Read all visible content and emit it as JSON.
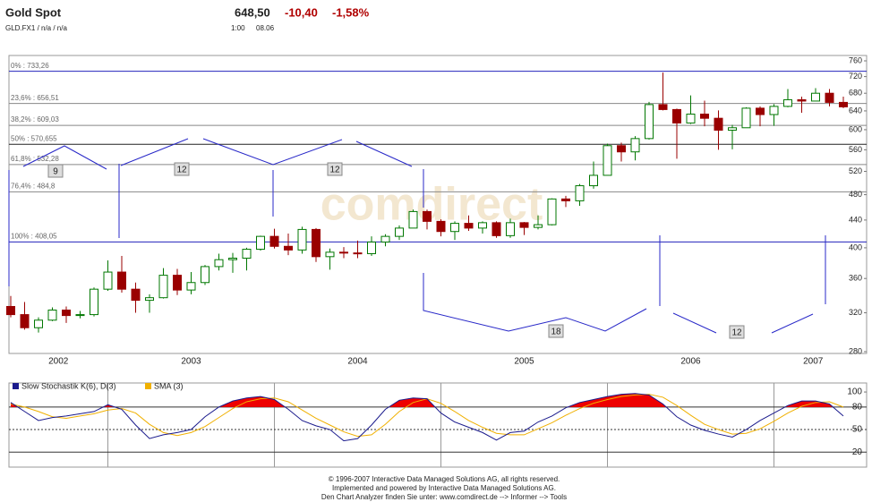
{
  "header": {
    "title": "Gold Spot",
    "symbol": "GLD.FX1 / n/a / n/a",
    "price": "648,50",
    "change": "-10,40",
    "change_pct": "-1,58%",
    "time": "1:00",
    "date": "08.06"
  },
  "footer": [
    "© 1996-2007 Interactive Data Managed Solutions AG, all rights reserved.",
    "Implemented and powered by Interactive Data Managed Solutions AG.",
    "Den Chart Analyzer finden Sie unter: www.comdirect.de --> Informer --> Tools"
  ],
  "chart_data": [
    {
      "type": "candlestick",
      "watermark": "comdirect",
      "log_scale": true,
      "up_color": "#ffffff",
      "up_border": "#007700",
      "down_color": "#9a0000",
      "categories": [
        null,
        null,
        null,
        null,
        null,
        null,
        null,
        null,
        null,
        null,
        null,
        null,
        null,
        null,
        null,
        null,
        null,
        null,
        null,
        null,
        null,
        null,
        null,
        null,
        null,
        null,
        null,
        null,
        null,
        null,
        null,
        null,
        null,
        null,
        null,
        null,
        null,
        null,
        null,
        null,
        null,
        null,
        null,
        null,
        null,
        null,
        null,
        null,
        null,
        null,
        null,
        null,
        null,
        null,
        null,
        null,
        null,
        null,
        null,
        null,
        null
      ],
      "year_labels": [
        "2002",
        "2003",
        "2004",
        "2005",
        "2006",
        "2007"
      ],
      "open": [
        327,
        318,
        304,
        312,
        323,
        317,
        318,
        347,
        368,
        347,
        334,
        337,
        364,
        346,
        355,
        375,
        384,
        386,
        398,
        416,
        402,
        397,
        426,
        388,
        394,
        393,
        392,
        408,
        416,
        428,
        453,
        438,
        423,
        435,
        428,
        436,
        417,
        436,
        429,
        433,
        473,
        470,
        495,
        513,
        568,
        556,
        582,
        654,
        643,
        614,
        633,
        624,
        599,
        604,
        646,
        632,
        650,
        665,
        662,
        680,
        659
      ],
      "high": [
        339,
        332,
        315,
        326,
        327,
        322,
        349,
        383,
        389,
        355,
        341,
        373,
        372,
        368,
        377,
        392,
        393,
        400,
        417,
        427,
        420,
        430,
        428,
        399,
        401,
        410,
        416,
        419,
        432,
        456,
        456,
        441,
        438,
        447,
        438,
        438,
        442,
        437,
        447,
        474,
        478,
        498,
        538,
        572,
        574,
        587,
        660,
        730,
        645,
        675,
        663,
        641,
        610,
        648,
        650,
        655,
        690,
        672,
        692,
        690,
        672
      ],
      "low": [
        315,
        302,
        299,
        311,
        309,
        314,
        316,
        345,
        343,
        320,
        320,
        336,
        340,
        341,
        352,
        370,
        367,
        370,
        396,
        399,
        390,
        392,
        381,
        371,
        386,
        386,
        389,
        402,
        411,
        428,
        426,
        416,
        411,
        424,
        420,
        414,
        414,
        418,
        426,
        432,
        460,
        462,
        490,
        513,
        538,
        540,
        580,
        641,
        543,
        612,
        607,
        560,
        561,
        604,
        607,
        608,
        648,
        636,
        662,
        650,
        646
      ],
      "close": [
        318,
        304,
        312,
        323,
        317,
        318,
        347,
        368,
        347,
        334,
        337,
        364,
        346,
        355,
        375,
        384,
        386,
        398,
        416,
        402,
        397,
        426,
        388,
        394,
        393,
        392,
        408,
        416,
        428,
        453,
        438,
        423,
        435,
        428,
        436,
        417,
        436,
        429,
        433,
        473,
        470,
        495,
        513,
        568,
        556,
        582,
        654,
        643,
        614,
        633,
        624,
        599,
        604,
        646,
        632,
        650,
        665,
        662,
        680,
        659,
        649
      ],
      "ylim": [
        280,
        760
      ],
      "yticks": [
        280,
        320,
        360,
        400,
        440,
        480,
        520,
        560,
        600,
        640,
        680,
        720,
        760
      ],
      "fib_levels": [
        {
          "label": "0% : 733,26",
          "value": 733.26,
          "color": "#2222bb"
        },
        {
          "label": "23,6% : 656,51",
          "value": 656.51,
          "color": "#888888"
        },
        {
          "label": "38,2% : 609,03",
          "value": 609.03,
          "color": "#888888"
        },
        {
          "label": "50% : 570,655",
          "value": 570.655,
          "color": "#222222"
        },
        {
          "label": "61,8% : 532,28",
          "value": 532.28,
          "color": "#888888"
        },
        {
          "label": "76,4% : 484,8",
          "value": 484.8,
          "color": "#888888"
        },
        {
          "label": "100% : 408,05",
          "value": 408.05,
          "color": "#2222bb"
        }
      ],
      "annotations": [
        "9",
        "12",
        "12",
        "18",
        "12"
      ]
    },
    {
      "type": "line",
      "series": [
        {
          "name": "Slow Stochastik K(6), D(3)",
          "color": "#1a1a8c",
          "values": [
            86,
            74,
            62,
            66,
            68,
            71,
            74,
            83,
            77,
            56,
            38,
            43,
            46,
            50,
            67,
            80,
            88,
            92,
            94,
            90,
            77,
            62,
            55,
            50,
            35,
            38,
            56,
            77,
            89,
            92,
            91,
            72,
            60,
            53,
            46,
            36,
            46,
            48,
            60,
            68,
            79,
            86,
            90,
            94,
            97,
            98,
            96,
            84,
            67,
            56,
            49,
            44,
            40,
            50,
            62,
            72,
            82,
            88,
            88,
            84,
            68
          ]
        },
        {
          "name": "SMA (3)",
          "color": "#f0b000",
          "values": [
            84,
            80,
            74,
            67,
            65,
            68,
            71,
            76,
            78,
            72,
            57,
            46,
            42,
            46,
            54,
            66,
            78,
            87,
            91,
            92,
            87,
            76,
            65,
            56,
            47,
            41,
            43,
            57,
            74,
            86,
            91,
            85,
            74,
            62,
            53,
            45,
            43,
            43,
            51,
            59,
            69,
            78,
            85,
            90,
            94,
            96,
            97,
            93,
            82,
            69,
            57,
            50,
            44,
            45,
            51,
            61,
            72,
            81,
            86,
            87,
            80
          ]
        }
      ],
      "fill_color": "#ee0000",
      "fill_above": 80,
      "ylim": [
        0,
        112
      ],
      "yticks": [
        20,
        50,
        80,
        100
      ]
    }
  ]
}
